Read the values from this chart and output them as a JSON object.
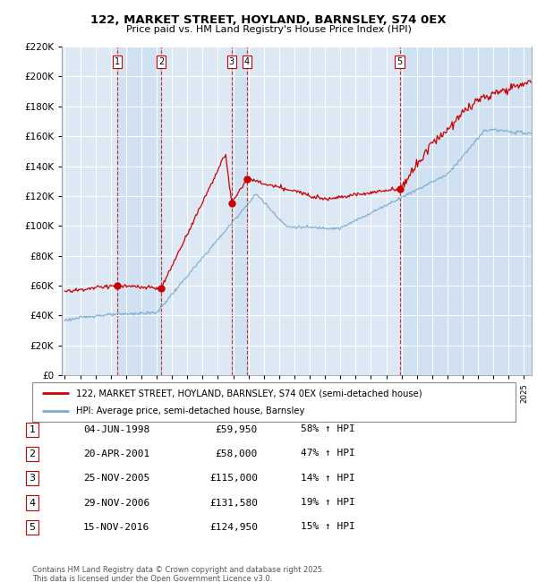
{
  "title1": "122, MARKET STREET, HOYLAND, BARNSLEY, S74 0EX",
  "title2": "Price paid vs. HM Land Registry's House Price Index (HPI)",
  "background_color": "#ffffff",
  "plot_bg_color": "#dce9f5",
  "grid_color": "#ffffff",
  "shade_color": "#c8dcf0",
  "legend_line1": "122, MARKET STREET, HOYLAND, BARNSLEY, S74 0EX (semi-detached house)",
  "legend_line2": "HPI: Average price, semi-detached house, Barnsley",
  "transactions": [
    {
      "num": 1,
      "date": "04-JUN-1998",
      "year": 1998.42,
      "price": 59950,
      "hpi_pct": "58% ↑ HPI"
    },
    {
      "num": 2,
      "date": "20-APR-2001",
      "year": 2001.3,
      "price": 58000,
      "hpi_pct": "47% ↑ HPI"
    },
    {
      "num": 3,
      "date": "25-NOV-2005",
      "year": 2005.9,
      "price": 115000,
      "hpi_pct": "14% ↑ HPI"
    },
    {
      "num": 4,
      "date": "29-NOV-2006",
      "year": 2006.91,
      "price": 131580,
      "hpi_pct": "19% ↑ HPI"
    },
    {
      "num": 5,
      "date": "15-NOV-2016",
      "year": 2016.88,
      "price": 124950,
      "hpi_pct": "15% ↑ HPI"
    }
  ],
  "footer": "Contains HM Land Registry data © Crown copyright and database right 2025.\nThis data is licensed under the Open Government Licence v3.0.",
  "ylim": [
    0,
    220000
  ],
  "xlim_start": 1994.8,
  "xlim_end": 2025.5,
  "red_color": "#cc0000",
  "blue_color": "#7aabcf",
  "yticks": [
    0,
    20000,
    40000,
    60000,
    80000,
    100000,
    120000,
    140000,
    160000,
    180000,
    200000,
    220000
  ]
}
